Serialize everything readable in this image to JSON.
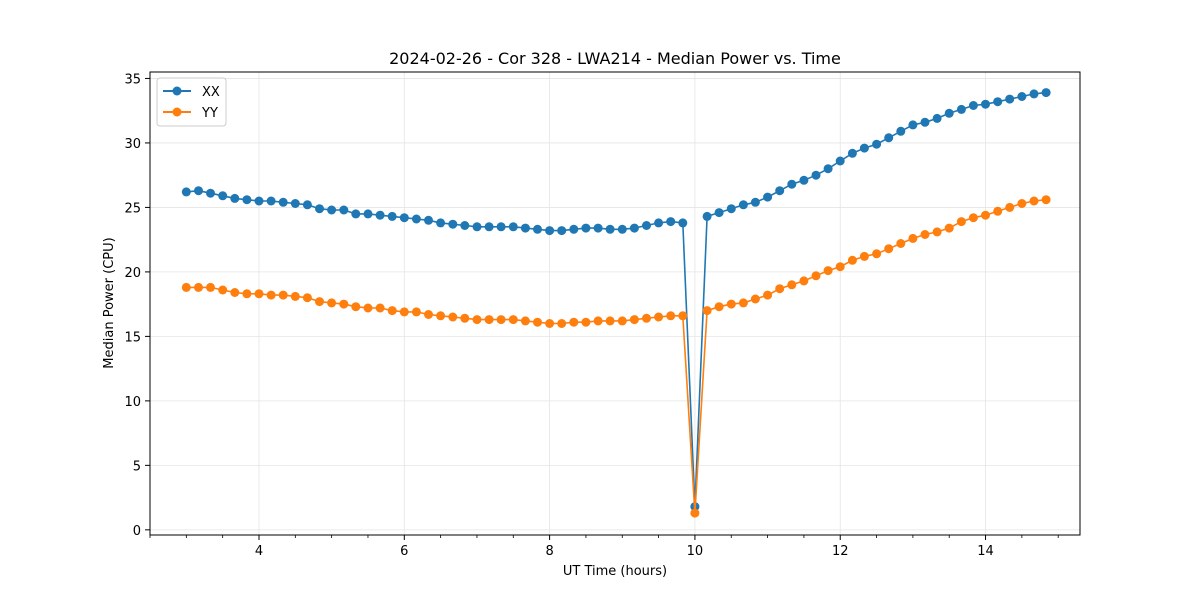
{
  "chart_data": {
    "type": "line",
    "title": "2024-02-26 - Cor 328 - LWA214 - Median Power vs. Time",
    "xlabel": "UT Time (hours)",
    "ylabel": "Median Power (CPU)",
    "xlim": [
      2.5,
      15.3
    ],
    "ylim": [
      -0.4,
      35.5
    ],
    "xticks": [
      4,
      6,
      8,
      10,
      12,
      14
    ],
    "yticks": [
      0,
      5,
      10,
      15,
      20,
      25,
      30,
      35
    ],
    "grid": true,
    "legend_position": "top-left",
    "x": [
      3.0,
      3.167,
      3.333,
      3.5,
      3.667,
      3.833,
      4.0,
      4.167,
      4.333,
      4.5,
      4.667,
      4.833,
      5.0,
      5.167,
      5.333,
      5.5,
      5.667,
      5.833,
      6.0,
      6.167,
      6.333,
      6.5,
      6.667,
      6.833,
      7.0,
      7.167,
      7.333,
      7.5,
      7.667,
      7.833,
      8.0,
      8.167,
      8.333,
      8.5,
      8.667,
      8.833,
      9.0,
      9.167,
      9.333,
      9.5,
      9.667,
      9.833,
      10.0,
      10.167,
      10.333,
      10.5,
      10.667,
      10.833,
      11.0,
      11.167,
      11.333,
      11.5,
      11.667,
      11.833,
      12.0,
      12.167,
      12.333,
      12.5,
      12.667,
      12.833,
      13.0,
      13.167,
      13.333,
      13.5,
      13.667,
      13.833,
      14.0,
      14.167,
      14.333,
      14.5,
      14.667,
      14.833
    ],
    "series": [
      {
        "name": "XX",
        "color": "#1f77b4",
        "values": [
          26.2,
          26.3,
          26.1,
          25.9,
          25.7,
          25.6,
          25.5,
          25.5,
          25.4,
          25.3,
          25.2,
          24.9,
          24.8,
          24.8,
          24.5,
          24.5,
          24.4,
          24.3,
          24.2,
          24.1,
          24.0,
          23.8,
          23.7,
          23.6,
          23.5,
          23.5,
          23.5,
          23.5,
          23.4,
          23.3,
          23.2,
          23.2,
          23.3,
          23.4,
          23.4,
          23.3,
          23.3,
          23.4,
          23.6,
          23.8,
          23.9,
          23.8,
          1.8,
          24.3,
          24.6,
          24.9,
          25.2,
          25.4,
          25.8,
          26.3,
          26.8,
          27.1,
          27.5,
          28.0,
          28.6,
          29.2,
          29.6,
          29.9,
          30.4,
          30.9,
          31.4,
          31.6,
          31.9,
          32.3,
          32.6,
          32.9,
          33.0,
          33.2,
          33.4,
          33.6,
          33.8,
          33.9
        ]
      },
      {
        "name": "YY",
        "color": "#ff7f0e",
        "values": [
          18.8,
          18.8,
          18.8,
          18.6,
          18.4,
          18.3,
          18.3,
          18.2,
          18.2,
          18.1,
          18.0,
          17.7,
          17.6,
          17.5,
          17.3,
          17.2,
          17.2,
          17.0,
          16.9,
          16.9,
          16.7,
          16.6,
          16.5,
          16.4,
          16.3,
          16.3,
          16.3,
          16.3,
          16.2,
          16.1,
          16.0,
          16.0,
          16.1,
          16.1,
          16.2,
          16.2,
          16.2,
          16.3,
          16.4,
          16.5,
          16.6,
          16.6,
          1.3,
          17.0,
          17.3,
          17.5,
          17.6,
          17.9,
          18.2,
          18.7,
          19.0,
          19.3,
          19.7,
          20.1,
          20.4,
          20.9,
          21.2,
          21.4,
          21.8,
          22.2,
          22.6,
          22.9,
          23.1,
          23.4,
          23.9,
          24.2,
          24.4,
          24.7,
          25.0,
          25.3,
          25.5,
          25.6
        ]
      }
    ]
  }
}
